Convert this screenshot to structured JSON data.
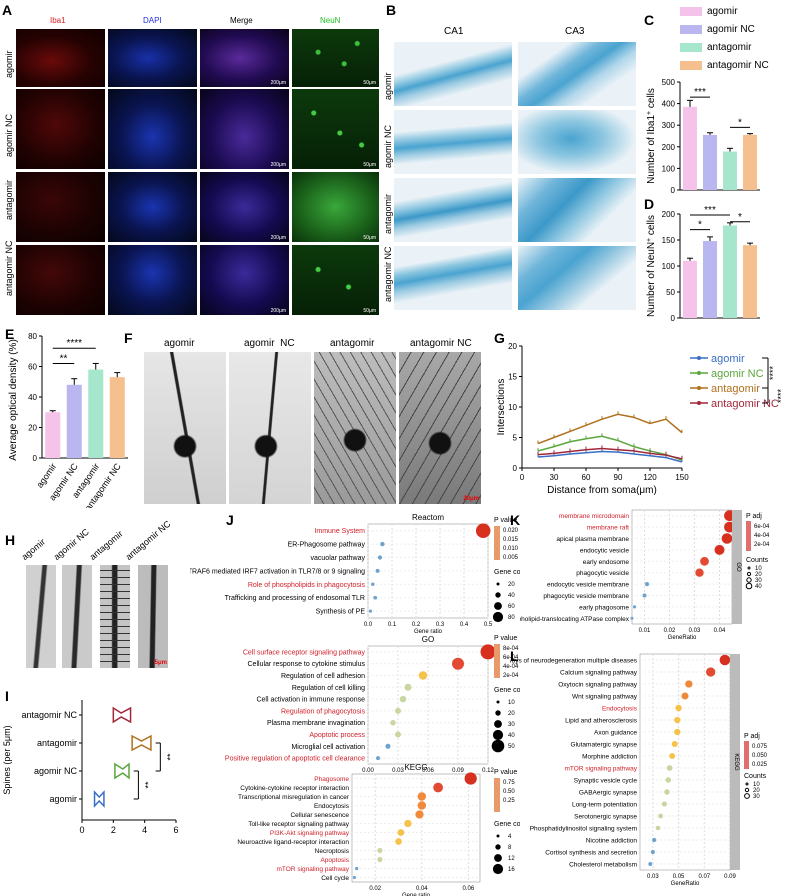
{
  "panelA": {
    "letter": "A",
    "channels": [
      "Iba1",
      "DAPI",
      "Merge",
      "NeuN"
    ],
    "channel_colors": [
      "#e02020",
      "#2030e0",
      "#000000",
      "#20c020"
    ],
    "rows": [
      "agomir",
      "agomir NC",
      "antagomir",
      "antagomir NC"
    ],
    "scalebar_merge": "200μm",
    "scalebar_neun": "50μm"
  },
  "panelB": {
    "letter": "B",
    "columns": [
      "CA1",
      "CA3"
    ],
    "rows": [
      "agomir",
      "agomir NC",
      "antagomir",
      "antagomir NC"
    ]
  },
  "legend": {
    "groups": [
      "agomir",
      "agomir NC",
      "antagomir",
      "antagomir NC"
    ],
    "colors": [
      "#f5c3ea",
      "#b9b6f0",
      "#a6e6cc",
      "#f5c08d"
    ]
  },
  "panelC": {
    "letter": "C",
    "ylabel": "Number of Iba1",
    "ylabel_sup": "+",
    "ylabel_suffix": " cells",
    "yticks": [
      "0",
      "100",
      "200",
      "300",
      "400",
      "500"
    ],
    "sig": [
      "***",
      "*"
    ]
  },
  "panelD": {
    "letter": "D",
    "ylabel": "Number of NeuN",
    "ylabel_sup": "+",
    "ylabel_suffix": " cells",
    "yticks": [
      "0",
      "50",
      "100",
      "150",
      "200"
    ],
    "sig": [
      "***",
      "*",
      "*"
    ]
  },
  "panelE": {
    "letter": "E",
    "ylabel": "Average optical density (%)",
    "yticks": [
      "0",
      "20",
      "40",
      "60",
      "80"
    ],
    "sig": [
      "****",
      "**"
    ]
  },
  "panelF": {
    "letter": "F",
    "titles": [
      "agomir",
      "agomir  NC",
      "antagomir",
      "antagomir NC"
    ],
    "scalebar": "20μm"
  },
  "panelG": {
    "letter": "G",
    "xlabel": "Distance from soma(μm)",
    "ylabel": "Intersections",
    "xticks": [
      "0",
      "30",
      "60",
      "90",
      "120",
      "150"
    ],
    "yticks": [
      "0",
      "5",
      "10",
      "15",
      "20"
    ],
    "series_names": [
      "agomir",
      "agomir NC",
      "antagomir",
      "antagomir NC"
    ],
    "series_colors": [
      "#3a6fc4",
      "#5aa63c",
      "#b0701e",
      "#a0283a"
    ],
    "sig": [
      "****",
      "****"
    ]
  },
  "panelH": {
    "letter": "H",
    "titles": [
      "agomir",
      "agomir NC",
      "antagomir",
      "antagomir NC"
    ],
    "scalebar": "5μm"
  },
  "panelI": {
    "letter": "I",
    "xlabel": "Spines (per 5μm)",
    "xticks": [
      "0",
      "2",
      "4",
      "6"
    ],
    "groups": [
      "antagomir NC",
      "antagomir",
      "agomir NC",
      "agomir"
    ],
    "sig": [
      "**",
      "**"
    ]
  },
  "panelJ": {
    "letter": "J",
    "reactome_title": "Reactom",
    "go_title": "GO",
    "kegg_title": "KEGG",
    "xlabel": "Gene ratio",
    "pvalue_title": "P value",
    "count_title": "Gene count"
  },
  "panelK": {
    "letter": "K",
    "xlabel": "GeneRatio",
    "padj_title": "P adj",
    "counts_title": "Counts",
    "strip": "GO"
  },
  "panelL": {
    "letter": "L",
    "xlabel": "GeneRatio",
    "padj_title": "P adj",
    "counts_title": "Counts",
    "strip": "KEGG"
  },
  "chart_data": [
    {
      "panel": "C",
      "type": "bar",
      "categories": [
        "agomir",
        "agomir NC",
        "antagomir",
        "antagomir NC"
      ],
      "values": [
        385,
        255,
        178,
        255
      ],
      "errors": [
        30,
        10,
        15,
        6
      ],
      "ylim": [
        0,
        500
      ]
    },
    {
      "panel": "D",
      "type": "bar",
      "categories": [
        "agomir",
        "agomir NC",
        "antagomir",
        "antagomir NC"
      ],
      "values": [
        110,
        148,
        178,
        140
      ],
      "errors": [
        5,
        8,
        5,
        4
      ],
      "ylim": [
        0,
        200
      ]
    },
    {
      "panel": "E",
      "type": "bar",
      "categories": [
        "agomir",
        "agomir NC",
        "antagomir",
        "antagomir NC"
      ],
      "values": [
        30,
        48,
        58,
        53
      ],
      "errors": [
        1,
        4,
        4,
        3
      ],
      "ylim": [
        0,
        80
      ]
    },
    {
      "panel": "G",
      "type": "line",
      "x": [
        15,
        30,
        45,
        60,
        75,
        90,
        105,
        120,
        135,
        150
      ],
      "xlim": [
        0,
        150
      ],
      "ylim": [
        0,
        20
      ],
      "series": [
        {
          "name": "agomir",
          "values": [
            1.8,
            2.0,
            2.3,
            2.5,
            2.7,
            2.6,
            2.3,
            2.0,
            1.7,
            1.0
          ]
        },
        {
          "name": "agomir NC",
          "values": [
            2.8,
            3.5,
            4.3,
            4.8,
            5.2,
            4.5,
            3.5,
            2.8,
            2.2,
            1.3
          ]
        },
        {
          "name": "antagomir",
          "values": [
            4.0,
            5.0,
            6.0,
            7.0,
            8.0,
            8.8,
            8.3,
            7.3,
            8.0,
            5.8
          ]
        },
        {
          "name": "antagomir NC",
          "values": [
            2.2,
            2.4,
            2.7,
            3.0,
            3.2,
            3.0,
            2.8,
            2.4,
            2.1,
            1.5
          ]
        }
      ]
    },
    {
      "panel": "I",
      "type": "box",
      "categories": [
        "antagomir NC",
        "antagomir",
        "agomir NC",
        "agomir"
      ],
      "values": [
        2.5,
        3.8,
        2.6,
        1.1
      ],
      "ranges": [
        [
          2.0,
          3.1
        ],
        [
          3.2,
          4.4
        ],
        [
          2.1,
          3.0
        ],
        [
          0.8,
          1.4
        ]
      ],
      "xlim": [
        0,
        6
      ]
    },
    {
      "panel": "J-Reactome",
      "type": "scatter",
      "xlim": [
        0,
        0.5
      ],
      "categories": [
        "Immune System",
        "ER-Phagosome pathway",
        "vacuolar pathway",
        "TRAF6 mediated IRF7 activation in TLR7/8 or 9 signaling",
        "Role of phospholipids in phagocytosis",
        "Trafficking and processing of endosomal TLR",
        "Synthesis of PE"
      ],
      "highlight": [
        true,
        false,
        false,
        false,
        true,
        false,
        false
      ],
      "gene_ratio": [
        0.48,
        0.06,
        0.05,
        0.04,
        0.02,
        0.03,
        0.01
      ],
      "pvalue_ticks": [
        "0.020",
        "0.015",
        "0.010",
        "0.005"
      ],
      "count_ticks": [
        "20",
        "40",
        "60",
        "80"
      ],
      "xticks": [
        "0.0",
        "0.1",
        "0.2",
        "0.3",
        "0.4",
        "0.5"
      ]
    },
    {
      "panel": "J-GO",
      "type": "scatter",
      "xlim": [
        0,
        0.12
      ],
      "categories": [
        "Cell surface receptor signaling pathway",
        "Cellular response to cytokine stimulus",
        "Regulation of cell adhesion",
        "Regulation of cell killing",
        "Cell activation in immune response",
        "Regulation of phagocytosis",
        "Plasma membrane invagination",
        "Apoptotic process",
        "Microglial cell activation",
        "Positive regulation of apoptotic cell clearance"
      ],
      "highlight": [
        true,
        false,
        false,
        false,
        false,
        true,
        false,
        true,
        false,
        true
      ],
      "gene_ratio": [
        0.12,
        0.09,
        0.055,
        0.04,
        0.035,
        0.03,
        0.025,
        0.03,
        0.02,
        0.01
      ],
      "pvalue_ticks": [
        "8e-04",
        "6e-04",
        "4e-04",
        "2e-04"
      ],
      "count_ticks": [
        "10",
        "20",
        "30",
        "40",
        "50"
      ],
      "xticks": [
        "0.00",
        "0.03",
        "0.06",
        "0.09",
        "0.12"
      ]
    },
    {
      "panel": "J-KEGG",
      "type": "scatter",
      "xlim": [
        0.01,
        0.065
      ],
      "categories": [
        "Phagosome",
        "Cytokine-cytokine receptor interaction",
        "Transcriptional misregulation in cancer",
        "Endocytosis",
        "Cellular senescence",
        "Toll-like receptor signaling pathway",
        "PI3K-Akt signaling pathway",
        "Neuroactive ligand-receptor interaction",
        "Necroptosis",
        "Apoptosis",
        "mTOR signaling pathway",
        "Cell cycle"
      ],
      "highlight": [
        true,
        false,
        false,
        false,
        false,
        false,
        true,
        false,
        false,
        true,
        true,
        false
      ],
      "gene_ratio": [
        0.061,
        0.047,
        0.04,
        0.04,
        0.039,
        0.034,
        0.031,
        0.03,
        0.022,
        0.022,
        0.012,
        0.011
      ],
      "pvalue_ticks": [
        "0.75",
        "0.50",
        "0.25"
      ],
      "count_ticks": [
        "4",
        "8",
        "12",
        "16"
      ],
      "xticks": [
        "0.02",
        "0.04",
        "0.06"
      ]
    },
    {
      "panel": "K",
      "type": "scatter",
      "xlim": [
        0.005,
        0.045
      ],
      "categories": [
        "membrane microdomain",
        "membrane raft",
        "apical plasma membrane",
        "endocytic vesicle",
        "early endosome",
        "phagocytic vesicle",
        "endocytic vesicle membrane",
        "phagocytic vesicle membrane",
        "early phagosome",
        "phospholipid-translocating ATPase complex"
      ],
      "highlight": [
        true,
        true,
        false,
        false,
        false,
        false,
        false,
        false,
        false,
        false
      ],
      "gene_ratio": [
        0.044,
        0.044,
        0.043,
        0.04,
        0.034,
        0.032,
        0.011,
        0.01,
        0.006,
        0.005
      ],
      "padj_ticks": [
        "6e-04",
        "4e-04",
        "2e-04"
      ],
      "count_ticks": [
        "10",
        "20",
        "30",
        "40"
      ],
      "xticks": [
        "0.01",
        "0.02",
        "0.03",
        "0.04"
      ]
    },
    {
      "panel": "L",
      "type": "scatter",
      "xlim": [
        0.02,
        0.09
      ],
      "categories": [
        "Pathways of neurodegeneration multiple diseases",
        "Calcium signaling pathway",
        "Oxytocin signaling pathway",
        "Wnt signaling pathway",
        "Endocytosis",
        "Lipid and atherosclerosis",
        "Axon guidance",
        "Glutamatergic synapse",
        "Morphine addiction",
        "mTOR signaling pathway",
        "Synaptic vesicle cycle",
        "GABAergic synapse",
        "Long-term potentiation",
        "Serotonergic synapse",
        "Phosphatidylinositol signaling system",
        "Nicotine addiction",
        "Cortisol synthesis and secretion",
        "Cholesterol metabolism"
      ],
      "highlight": [
        false,
        false,
        false,
        false,
        true,
        false,
        false,
        false,
        false,
        true,
        false,
        false,
        false,
        false,
        false,
        false,
        false,
        false
      ],
      "gene_ratio": [
        0.086,
        0.075,
        0.058,
        0.055,
        0.05,
        0.049,
        0.049,
        0.047,
        0.045,
        0.043,
        0.042,
        0.041,
        0.039,
        0.036,
        0.034,
        0.031,
        0.03,
        0.028
      ],
      "padj_ticks": [
        "0.075",
        "0.050",
        "0.025"
      ],
      "count_ticks": [
        "10",
        "20",
        "30"
      ],
      "xticks": [
        "0.03",
        "0.05",
        "0.07",
        "0.09"
      ]
    }
  ]
}
